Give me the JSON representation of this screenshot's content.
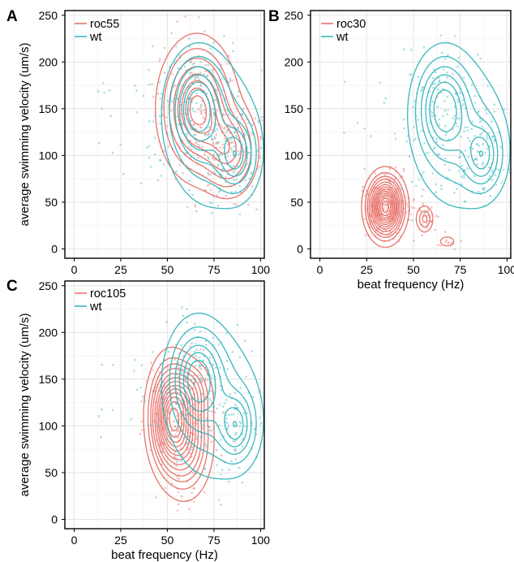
{
  "chart_data": [
    {
      "panel": "A",
      "type": "scatter",
      "xlim": [
        -5,
        102
      ],
      "ylim": [
        -10,
        255
      ],
      "xticks": [
        "0",
        "25",
        "50",
        "75",
        "100"
      ],
      "yticks": [
        "0",
        "50",
        "100",
        "150",
        "200",
        "250"
      ],
      "xlabel": "",
      "ylabel": "average swimming velocity (um/s)",
      "grid": true,
      "legend_position": "top-left",
      "series": [
        {
          "name": "roc55",
          "color": "#e8736c",
          "density_peaks": [
            {
              "x": 66,
              "y": 150,
              "sx": 10,
              "sy": 36,
              "w": 1.0
            },
            {
              "x": 83,
              "y": 105,
              "sx": 8,
              "sy": 25,
              "w": 0.6
            }
          ]
        },
        {
          "name": "wt",
          "color": "#3ab8bd",
          "density_peaks": [
            {
              "x": 66,
              "y": 152,
              "sx": 8,
              "sy": 30,
              "w": 1.0
            },
            {
              "x": 87,
              "y": 100,
              "sx": 6,
              "sy": 22,
              "w": 0.75
            },
            {
              "x": 75,
              "y": 120,
              "sx": 14,
              "sy": 45,
              "w": 0.4
            }
          ]
        }
      ]
    },
    {
      "panel": "B",
      "type": "scatter",
      "xlim": [
        -5,
        102
      ],
      "ylim": [
        -10,
        255
      ],
      "xticks": [
        "0",
        "25",
        "50",
        "75",
        "100"
      ],
      "yticks": [
        "0",
        "50",
        "100",
        "150",
        "200",
        "250"
      ],
      "xlabel": "beat frequency (Hz)",
      "ylabel": "",
      "grid": true,
      "legend_position": "top-left",
      "series": [
        {
          "name": "roc30",
          "color": "#e8736c",
          "density_peaks": [
            {
              "x": 35,
              "y": 45,
              "sx": 5,
              "sy": 17,
              "w": 1.0
            },
            {
              "x": 56,
              "y": 32,
              "sx": 2.5,
              "sy": 8,
              "w": 0.18
            },
            {
              "x": 68,
              "y": 8,
              "sx": 3,
              "sy": 4,
              "w": 0.08
            }
          ]
        },
        {
          "name": "wt",
          "color": "#3ab8bd",
          "density_peaks": [
            {
              "x": 66,
              "y": 152,
              "sx": 8,
              "sy": 30,
              "w": 1.0
            },
            {
              "x": 87,
              "y": 100,
              "sx": 6,
              "sy": 22,
              "w": 0.75
            },
            {
              "x": 75,
              "y": 120,
              "sx": 14,
              "sy": 45,
              "w": 0.4
            }
          ]
        }
      ]
    },
    {
      "panel": "C",
      "type": "scatter",
      "xlim": [
        -5,
        102
      ],
      "ylim": [
        -10,
        255
      ],
      "xticks": [
        "0",
        "25",
        "50",
        "75",
        "100"
      ],
      "yticks": [
        "0",
        "50",
        "100",
        "150",
        "200",
        "250"
      ],
      "xlabel": "beat frequency (Hz)",
      "ylabel": "average swimming velocity (um/s)",
      "grid": true,
      "legend_position": "top-left",
      "series": [
        {
          "name": "roc105",
          "color": "#e8736c",
          "density_peaks": [
            {
              "x": 52,
              "y": 110,
              "sx": 6,
              "sy": 30,
              "w": 1.0
            },
            {
              "x": 60,
              "y": 85,
              "sx": 7,
              "sy": 30,
              "w": 0.5
            },
            {
              "x": 62,
              "y": 135,
              "sx": 6,
              "sy": 18,
              "w": 0.3
            }
          ]
        },
        {
          "name": "wt",
          "color": "#3ab8bd",
          "density_peaks": [
            {
              "x": 66,
              "y": 152,
              "sx": 8,
              "sy": 30,
              "w": 1.0
            },
            {
              "x": 87,
              "y": 100,
              "sx": 6,
              "sy": 22,
              "w": 0.75
            },
            {
              "x": 75,
              "y": 120,
              "sx": 14,
              "sy": 45,
              "w": 0.4
            }
          ]
        }
      ]
    }
  ]
}
